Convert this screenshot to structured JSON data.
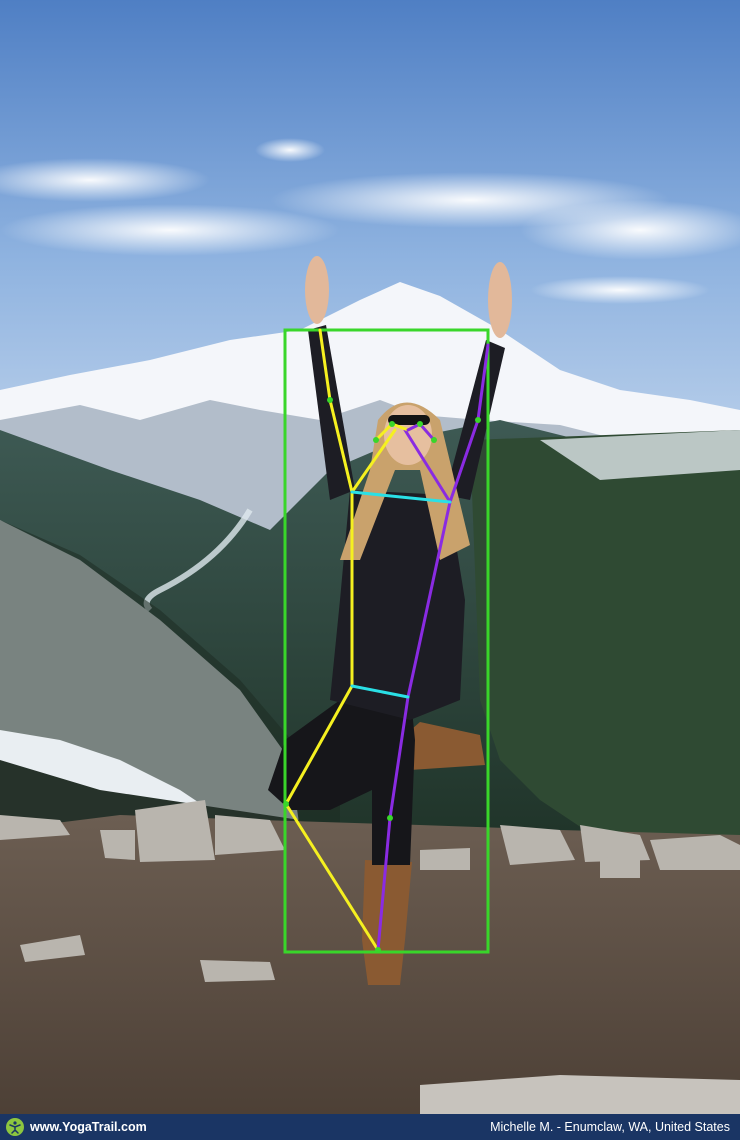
{
  "footer": {
    "site": "www.YogaTrail.com",
    "credit": "Michelle M. - Enumclaw, WA, United States"
  },
  "colors": {
    "bbox": "#39d62a",
    "left_limbs": "#f5f020",
    "right_limbs": "#8a2be2",
    "cross_lines": "#2ae0e6",
    "footer_bg": "#1a3564",
    "logo": "#8dc63f"
  },
  "icons": {
    "logo": "yoga-figure-icon"
  }
}
